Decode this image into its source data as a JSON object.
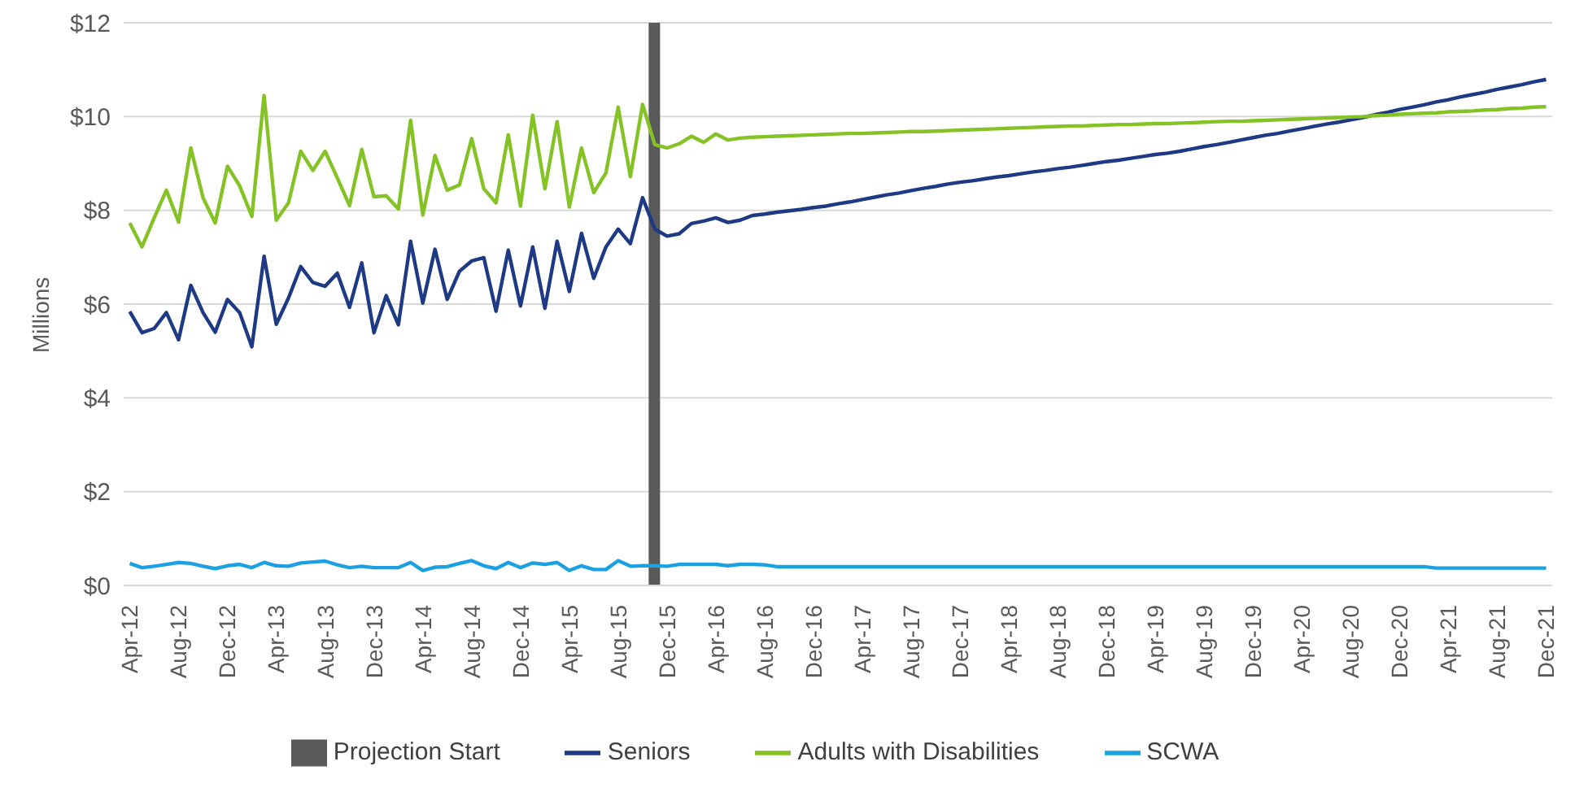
{
  "chart_data": {
    "type": "line",
    "ylabel": "Millions",
    "categories": [
      "Apr-12",
      null,
      null,
      null,
      "Aug-12",
      null,
      null,
      null,
      "Dec-12",
      null,
      null,
      null,
      "Apr-13",
      null,
      null,
      null,
      "Aug-13",
      null,
      null,
      null,
      "Dec-13",
      null,
      null,
      null,
      "Apr-14",
      null,
      null,
      null,
      "Aug-14",
      null,
      null,
      null,
      "Dec-14",
      null,
      null,
      null,
      "Apr-15",
      null,
      null,
      null,
      "Aug-15",
      null,
      null,
      null,
      "Dec-15",
      null,
      null,
      null,
      "Apr-16",
      null,
      null,
      null,
      "Aug-16",
      null,
      null,
      null,
      "Dec-16",
      null,
      null,
      null,
      "Apr-17",
      null,
      null,
      null,
      "Aug-17",
      null,
      null,
      null,
      "Dec-17",
      null,
      null,
      null,
      "Apr-18",
      null,
      null,
      null,
      "Aug-18",
      null,
      null,
      null,
      "Dec-18",
      null,
      null,
      null,
      "Apr-19",
      null,
      null,
      null,
      "Aug-19",
      null,
      null,
      null,
      "Dec-19",
      null,
      null,
      null,
      "Apr-20",
      null,
      null,
      null,
      "Aug-20",
      null,
      null,
      null,
      "Dec-20",
      null,
      null,
      null,
      "Apr-21",
      null,
      null,
      null,
      "Aug-21",
      null,
      null,
      null,
      "Dec-21"
    ],
    "series": [
      {
        "name": "Projection Start",
        "type": "bar",
        "color": "#595959",
        "values": [
          null,
          null,
          null,
          null,
          null,
          null,
          null,
          null,
          null,
          null,
          null,
          null,
          null,
          null,
          null,
          null,
          null,
          null,
          null,
          null,
          null,
          null,
          null,
          null,
          null,
          null,
          null,
          null,
          null,
          null,
          null,
          null,
          null,
          null,
          null,
          null,
          null,
          null,
          null,
          null,
          null,
          null,
          null,
          12,
          null,
          null,
          null,
          null,
          null,
          null,
          null,
          null,
          null,
          null,
          null,
          null,
          null,
          null,
          null,
          null,
          null,
          null,
          null,
          null,
          null,
          null,
          null,
          null,
          null,
          null,
          null,
          null,
          null,
          null,
          null,
          null,
          null,
          null,
          null,
          null,
          null,
          null,
          null,
          null,
          null,
          null,
          null,
          null,
          null,
          null,
          null,
          null,
          null,
          null,
          null,
          null,
          null,
          null,
          null,
          null,
          null,
          null,
          null,
          null,
          null,
          null,
          null,
          null,
          null,
          null,
          null,
          null,
          null,
          null,
          null,
          null,
          null
        ]
      },
      {
        "name": "Seniors",
        "color": "#1f3a85",
        "values": [
          5.84,
          5.39,
          5.48,
          5.82,
          5.24,
          6.4,
          5.82,
          5.4,
          6.1,
          5.82,
          5.09,
          7.02,
          5.57,
          6.13,
          6.8,
          6.46,
          6.38,
          6.66,
          5.93,
          6.88,
          5.39,
          6.18,
          5.56,
          7.34,
          6.02,
          7.17,
          6.1,
          6.7,
          6.92,
          6.99,
          5.85,
          7.15,
          5.96,
          7.22,
          5.91,
          7.34,
          6.27,
          7.51,
          6.55,
          7.22,
          7.6,
          7.29,
          8.27,
          7.6,
          7.45,
          7.5,
          7.72,
          7.77,
          7.84,
          7.74,
          7.79,
          7.89,
          7.92,
          7.96,
          7.99,
          8.02,
          8.06,
          8.09,
          8.14,
          8.18,
          8.23,
          8.28,
          8.33,
          8.37,
          8.42,
          8.47,
          8.51,
          8.56,
          8.6,
          8.63,
          8.67,
          8.71,
          8.74,
          8.78,
          8.82,
          8.85,
          8.89,
          8.92,
          8.96,
          9.0,
          9.04,
          9.07,
          9.11,
          9.15,
          9.19,
          9.22,
          9.26,
          9.31,
          9.36,
          9.4,
          9.45,
          9.5,
          9.55,
          9.6,
          9.64,
          9.69,
          9.74,
          9.79,
          9.84,
          9.88,
          9.93,
          9.98,
          10.04,
          10.09,
          10.15,
          10.2,
          10.25,
          10.31,
          10.36,
          10.42,
          10.47,
          10.52,
          10.58,
          10.63,
          10.68,
          10.74,
          10.79
        ]
      },
      {
        "name": "Adults with Disabilities",
        "color": "#84c225",
        "values": [
          7.73,
          7.22,
          7.84,
          8.43,
          7.75,
          9.33,
          8.27,
          7.73,
          8.94,
          8.52,
          7.87,
          10.45,
          7.79,
          8.16,
          9.26,
          8.85,
          9.26,
          8.69,
          8.1,
          9.3,
          8.29,
          8.31,
          8.03,
          9.92,
          7.9,
          9.17,
          8.43,
          8.54,
          9.53,
          8.46,
          8.16,
          9.61,
          8.09,
          10.03,
          8.46,
          9.89,
          8.07,
          9.33,
          8.38,
          8.8,
          10.2,
          8.72,
          10.26,
          9.4,
          9.33,
          9.42,
          9.58,
          9.45,
          9.63,
          9.5,
          9.54,
          9.56,
          9.57,
          9.58,
          9.59,
          9.6,
          9.61,
          9.62,
          9.63,
          9.64,
          9.64,
          9.65,
          9.66,
          9.67,
          9.68,
          9.68,
          9.69,
          9.7,
          9.71,
          9.72,
          9.73,
          9.74,
          9.75,
          9.76,
          9.77,
          9.78,
          9.79,
          9.8,
          9.8,
          9.81,
          9.82,
          9.83,
          9.83,
          9.84,
          9.85,
          9.85,
          9.86,
          9.87,
          9.88,
          9.89,
          9.9,
          9.9,
          9.91,
          9.92,
          9.93,
          9.94,
          9.95,
          9.96,
          9.97,
          9.98,
          9.99,
          10.0,
          10.02,
          10.03,
          10.05,
          10.06,
          10.07,
          10.08,
          10.1,
          10.11,
          10.12,
          10.14,
          10.15,
          10.17,
          10.18,
          10.2,
          10.21
        ]
      },
      {
        "name": "SCWA",
        "color": "#1ba1e2",
        "values": [
          0.47,
          0.38,
          0.41,
          0.45,
          0.49,
          0.47,
          0.41,
          0.36,
          0.42,
          0.45,
          0.38,
          0.49,
          0.42,
          0.41,
          0.48,
          0.5,
          0.52,
          0.44,
          0.38,
          0.41,
          0.38,
          0.38,
          0.38,
          0.49,
          0.32,
          0.39,
          0.4,
          0.47,
          0.53,
          0.42,
          0.36,
          0.49,
          0.38,
          0.48,
          0.45,
          0.49,
          0.32,
          0.42,
          0.34,
          0.34,
          0.53,
          0.41,
          0.42,
          0.42,
          0.41,
          0.45,
          0.45,
          0.45,
          0.45,
          0.42,
          0.45,
          0.45,
          0.44,
          0.4,
          0.4,
          0.4,
          0.4,
          0.4,
          0.4,
          0.4,
          0.4,
          0.4,
          0.4,
          0.4,
          0.4,
          0.4,
          0.4,
          0.4,
          0.4,
          0.4,
          0.4,
          0.4,
          0.4,
          0.4,
          0.4,
          0.4,
          0.4,
          0.4,
          0.4,
          0.4,
          0.4,
          0.4,
          0.4,
          0.4,
          0.4,
          0.4,
          0.4,
          0.4,
          0.4,
          0.4,
          0.4,
          0.4,
          0.4,
          0.4,
          0.4,
          0.4,
          0.4,
          0.4,
          0.4,
          0.4,
          0.4,
          0.4,
          0.4,
          0.4,
          0.4,
          0.4,
          0.4,
          0.37,
          0.37,
          0.37,
          0.37,
          0.37,
          0.37,
          0.37,
          0.37,
          0.37,
          0.37
        ]
      }
    ],
    "ylim": [
      0,
      12
    ],
    "yticks": [
      {
        "value": 0,
        "label": "$0"
      },
      {
        "value": 2,
        "label": "$2"
      },
      {
        "value": 4,
        "label": "$4"
      },
      {
        "value": 6,
        "label": "$6"
      },
      {
        "value": 8,
        "label": "$8"
      },
      {
        "value": 10,
        "label": "$10"
      },
      {
        "value": 12,
        "label": "$12"
      }
    ],
    "grid": "y",
    "legend": "bottom",
    "marker": "none",
    "line_style": "solid"
  }
}
